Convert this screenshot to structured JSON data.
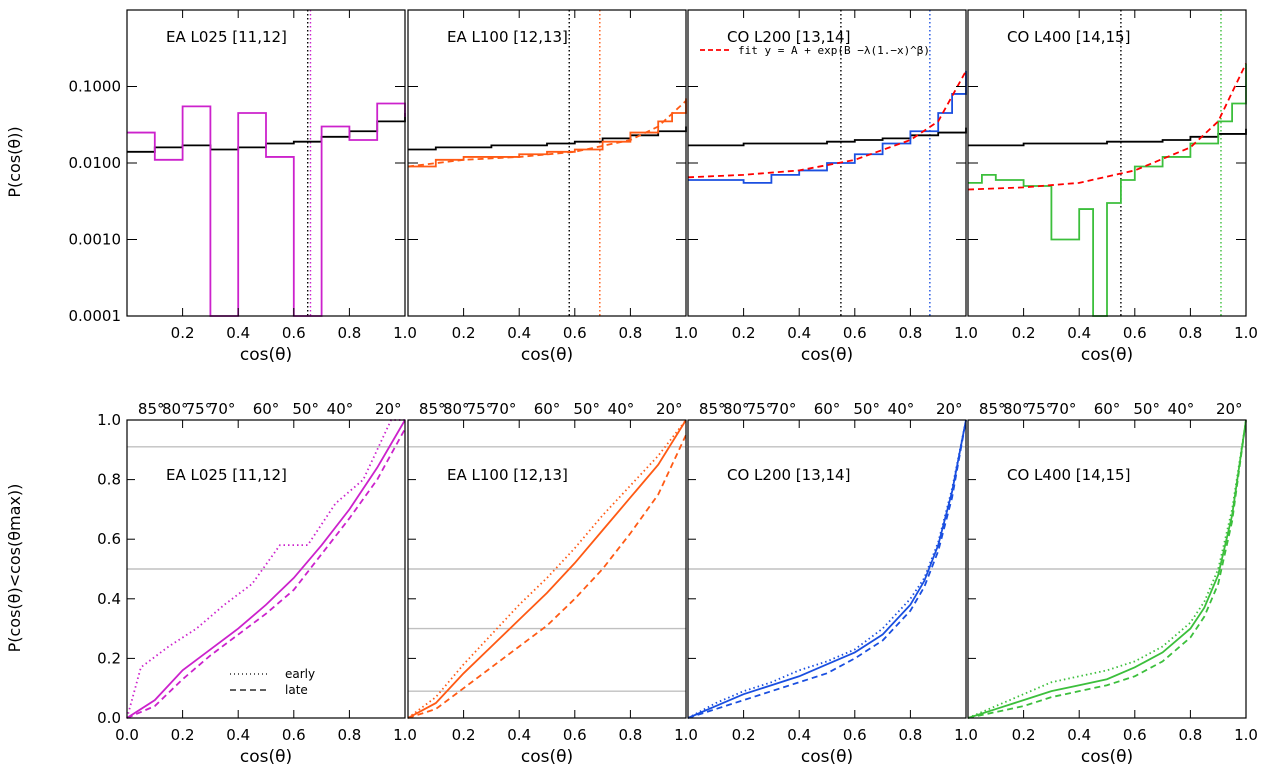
{
  "figure": {
    "top_ylabel": "P(cos(θ))",
    "bottom_ylabel": "P(cos(θ)<cos(θmax))",
    "xlabel": "cos(θ)",
    "fit_label": "fit y = A + exp(B −λ(1.−x)^β)",
    "legend_early": "early",
    "legend_late": "late"
  },
  "colors": {
    "EA L025": "#cc22cc",
    "EA L100": "#ff5a14",
    "CO L200": "#1a4fe0",
    "CO L400": "#3cbf3c",
    "reference": "#000000",
    "fit": "#ff0000",
    "gridline": "#c0c0c0"
  },
  "chart_data": [
    {
      "type": "line",
      "panel": "top-1",
      "drawstyle": "steps",
      "title": "EA L025 [11,12]",
      "xlabel": "cos(θ)",
      "ylabel": "P(cos(θ))",
      "yscale": "log",
      "xlim": [
        0,
        1
      ],
      "ylim": [
        0.0001,
        1.0
      ],
      "xticks": [
        "0.2",
        "0.4",
        "0.6",
        "0.8",
        "1.0"
      ],
      "yticks": [
        "0.0001",
        "0.0010",
        "0.0100",
        "0.1000"
      ],
      "vlines": [
        {
          "x": 0.65,
          "color": "#000000"
        },
        {
          "x": 0.66,
          "color": "#cc22cc"
        }
      ],
      "series": [
        {
          "color": "#000000",
          "x": [
            0.0,
            0.1,
            0.2,
            0.3,
            0.4,
            0.5,
            0.6,
            0.7,
            0.8,
            0.9,
            1.0
          ],
          "y": [
            0.014,
            0.016,
            0.017,
            0.015,
            0.016,
            0.018,
            0.019,
            0.022,
            0.026,
            0.035,
            0.045
          ]
        },
        {
          "color": "#cc22cc",
          "x": [
            0.0,
            0.1,
            0.2,
            0.3,
            0.4,
            0.5,
            0.6,
            0.7,
            0.8,
            0.9,
            1.0
          ],
          "y": [
            0.025,
            0.011,
            0.055,
            0.0001,
            0.045,
            0.012,
            0.0001,
            0.03,
            0.02,
            0.06,
            0.04
          ]
        }
      ]
    },
    {
      "type": "line",
      "panel": "top-2",
      "drawstyle": "steps",
      "title": "EA L100 [12,13]",
      "xlabel": "cos(θ)",
      "yscale": "log",
      "xlim": [
        0,
        1
      ],
      "ylim": [
        0.0001,
        1.0
      ],
      "xticks": [
        "0.2",
        "0.4",
        "0.6",
        "0.8",
        "1.0"
      ],
      "vlines": [
        {
          "x": 0.58,
          "color": "#000000"
        },
        {
          "x": 0.69,
          "color": "#ff5a14"
        }
      ],
      "series": [
        {
          "color": "#000000",
          "x": [
            0.0,
            0.1,
            0.2,
            0.3,
            0.4,
            0.5,
            0.6,
            0.7,
            0.8,
            0.9,
            1.0
          ],
          "y": [
            0.015,
            0.016,
            0.016,
            0.017,
            0.017,
            0.018,
            0.019,
            0.021,
            0.023,
            0.026,
            0.03
          ]
        },
        {
          "color": "#ff5a14",
          "x": [
            0.0,
            0.1,
            0.2,
            0.3,
            0.4,
            0.5,
            0.6,
            0.7,
            0.8,
            0.9,
            0.95,
            1.0
          ],
          "y": [
            0.009,
            0.011,
            0.012,
            0.012,
            0.013,
            0.014,
            0.015,
            0.019,
            0.025,
            0.035,
            0.045,
            0.07
          ]
        },
        {
          "color": "#ff5a14",
          "dash": "dashed",
          "x": [
            0.0,
            0.2,
            0.4,
            0.6,
            0.8,
            0.9,
            1.0
          ],
          "y": [
            0.009,
            0.011,
            0.012,
            0.014,
            0.02,
            0.03,
            0.065
          ]
        }
      ]
    },
    {
      "type": "line",
      "panel": "top-3",
      "drawstyle": "steps",
      "title": "CO L200 [13,14]",
      "xlabel": "cos(θ)",
      "yscale": "log",
      "xlim": [
        0,
        1
      ],
      "ylim": [
        0.0001,
        1.0
      ],
      "xticks": [
        "0.2",
        "0.4",
        "0.6",
        "0.8",
        "1.0"
      ],
      "vlines": [
        {
          "x": 0.55,
          "color": "#000000"
        },
        {
          "x": 0.87,
          "color": "#1a4fe0"
        }
      ],
      "series": [
        {
          "color": "#000000",
          "x": [
            0.0,
            0.1,
            0.2,
            0.3,
            0.4,
            0.5,
            0.6,
            0.7,
            0.8,
            0.9,
            1.0
          ],
          "y": [
            0.017,
            0.017,
            0.018,
            0.018,
            0.018,
            0.019,
            0.02,
            0.021,
            0.023,
            0.025,
            0.029
          ]
        },
        {
          "color": "#1a4fe0",
          "x": [
            0.0,
            0.1,
            0.2,
            0.3,
            0.4,
            0.5,
            0.6,
            0.7,
            0.8,
            0.9,
            0.95,
            1.0
          ],
          "y": [
            0.006,
            0.006,
            0.0055,
            0.007,
            0.008,
            0.01,
            0.013,
            0.018,
            0.026,
            0.045,
            0.08,
            0.16
          ]
        },
        {
          "color": "#ff0000",
          "dash": "dashed",
          "x": [
            0.0,
            0.2,
            0.4,
            0.6,
            0.8,
            0.9,
            1.0
          ],
          "y": [
            0.0065,
            0.007,
            0.008,
            0.011,
            0.02,
            0.035,
            0.16
          ]
        }
      ]
    },
    {
      "type": "line",
      "panel": "top-4",
      "drawstyle": "steps",
      "title": "CO L400 [14,15]",
      "xlabel": "cos(θ)",
      "yscale": "log",
      "xlim": [
        0,
        1
      ],
      "ylim": [
        0.0001,
        1.0
      ],
      "xticks": [
        "0.2",
        "0.4",
        "0.6",
        "0.8",
        "1.0"
      ],
      "vlines": [
        {
          "x": 0.55,
          "color": "#000000"
        },
        {
          "x": 0.91,
          "color": "#3cbf3c"
        }
      ],
      "series": [
        {
          "color": "#000000",
          "x": [
            0.0,
            0.1,
            0.2,
            0.3,
            0.4,
            0.5,
            0.6,
            0.7,
            0.8,
            0.9,
            1.0
          ],
          "y": [
            0.017,
            0.017,
            0.018,
            0.018,
            0.018,
            0.019,
            0.019,
            0.02,
            0.022,
            0.024,
            0.028
          ]
        },
        {
          "color": "#3cbf3c",
          "x": [
            0.0,
            0.05,
            0.1,
            0.2,
            0.3,
            0.4,
            0.45,
            0.5,
            0.55,
            0.6,
            0.7,
            0.8,
            0.9,
            0.95,
            1.0
          ],
          "y": [
            0.0055,
            0.007,
            0.006,
            0.005,
            0.001,
            0.0025,
            0.0001,
            0.003,
            0.006,
            0.009,
            0.012,
            0.018,
            0.035,
            0.06,
            0.2
          ]
        },
        {
          "color": "#ff0000",
          "dash": "dashed",
          "x": [
            0.0,
            0.2,
            0.4,
            0.6,
            0.8,
            0.9,
            1.0
          ],
          "y": [
            0.0045,
            0.0048,
            0.0055,
            0.008,
            0.016,
            0.035,
            0.2
          ]
        }
      ]
    },
    {
      "type": "line",
      "panel": "bottom-1",
      "title": "EA L025 [11,12]",
      "xlabel": "cos(θ)",
      "ylabel": "P(cos(θ)<cos(θmax))",
      "xlim": [
        0,
        1
      ],
      "ylim": [
        0,
        1.0
      ],
      "xticks": [
        "0.0",
        "0.2",
        "0.4",
        "0.6",
        "0.8",
        "1.0"
      ],
      "yticks": [
        "0.0",
        "0.2",
        "0.4",
        "0.6",
        "0.8",
        "1.0"
      ],
      "top_ticks": [
        "85°",
        "80°",
        "75°",
        "70°",
        "60°",
        "50°",
        "40°",
        "20°"
      ],
      "hlines": [
        0.5,
        0.91
      ],
      "series": [
        {
          "color": "#cc22cc",
          "dash": "solid",
          "x": [
            0.0,
            0.1,
            0.2,
            0.3,
            0.4,
            0.5,
            0.6,
            0.7,
            0.8,
            0.9,
            1.0
          ],
          "y": [
            0.0,
            0.06,
            0.16,
            0.23,
            0.3,
            0.38,
            0.47,
            0.58,
            0.7,
            0.84,
            1.0
          ]
        },
        {
          "color": "#cc22cc",
          "dash": "dashed",
          "name": "late",
          "x": [
            0.0,
            0.1,
            0.2,
            0.3,
            0.4,
            0.5,
            0.6,
            0.7,
            0.8,
            0.9,
            1.0
          ],
          "y": [
            0.0,
            0.04,
            0.13,
            0.21,
            0.28,
            0.35,
            0.43,
            0.55,
            0.67,
            0.8,
            0.97
          ]
        },
        {
          "color": "#cc22cc",
          "dash": "dotted",
          "name": "early",
          "x": [
            0.0,
            0.05,
            0.15,
            0.25,
            0.35,
            0.45,
            0.55,
            0.65,
            0.75,
            0.85,
            0.95,
            1.0
          ],
          "y": [
            0.0,
            0.17,
            0.24,
            0.3,
            0.38,
            0.45,
            0.58,
            0.58,
            0.72,
            0.8,
            1.0,
            1.0
          ]
        }
      ]
    },
    {
      "type": "line",
      "panel": "bottom-2",
      "title": "EA L100 [12,13]",
      "xlabel": "cos(θ)",
      "xlim": [
        0,
        1
      ],
      "ylim": [
        0,
        1.0
      ],
      "xticks": [
        "0.2",
        "0.4",
        "0.6",
        "0.8",
        "1.0"
      ],
      "top_ticks": [
        "85°",
        "80°",
        "75°",
        "70°",
        "60°",
        "50°",
        "40°",
        "20°"
      ],
      "hlines": [
        0.09,
        0.3,
        0.5,
        0.91
      ],
      "series": [
        {
          "color": "#ff5a14",
          "dash": "solid",
          "x": [
            0.0,
            0.1,
            0.2,
            0.3,
            0.4,
            0.5,
            0.6,
            0.7,
            0.8,
            0.9,
            1.0
          ],
          "y": [
            0.0,
            0.05,
            0.15,
            0.24,
            0.33,
            0.42,
            0.52,
            0.63,
            0.74,
            0.85,
            1.0
          ]
        },
        {
          "color": "#ff5a14",
          "dash": "dotted",
          "x": [
            0.0,
            0.1,
            0.2,
            0.3,
            0.4,
            0.5,
            0.6,
            0.7,
            0.8,
            0.9,
            1.0
          ],
          "y": [
            0.0,
            0.07,
            0.18,
            0.28,
            0.38,
            0.47,
            0.57,
            0.68,
            0.78,
            0.88,
            1.0
          ]
        },
        {
          "color": "#ff5a14",
          "dash": "dashed",
          "x": [
            0.0,
            0.1,
            0.2,
            0.3,
            0.4,
            0.5,
            0.6,
            0.7,
            0.8,
            0.9,
            1.0
          ],
          "y": [
            0.0,
            0.03,
            0.1,
            0.17,
            0.24,
            0.31,
            0.4,
            0.5,
            0.62,
            0.75,
            0.95
          ]
        }
      ]
    },
    {
      "type": "line",
      "panel": "bottom-3",
      "title": "CO L200 [13,14]",
      "xlabel": "cos(θ)",
      "xlim": [
        0,
        1
      ],
      "ylim": [
        0,
        1.0
      ],
      "xticks": [
        "0.2",
        "0.4",
        "0.6",
        "0.8",
        "1.0"
      ],
      "top_ticks": [
        "85°",
        "80°",
        "75°",
        "70°",
        "60°",
        "50°",
        "40°",
        "20°"
      ],
      "hlines": [
        0.5,
        0.91
      ],
      "series": [
        {
          "color": "#1a4fe0",
          "dash": "solid",
          "x": [
            0.0,
            0.1,
            0.2,
            0.3,
            0.4,
            0.5,
            0.6,
            0.7,
            0.8,
            0.85,
            0.9,
            0.95,
            1.0
          ],
          "y": [
            0.0,
            0.04,
            0.08,
            0.11,
            0.14,
            0.18,
            0.22,
            0.28,
            0.38,
            0.46,
            0.58,
            0.76,
            1.0
          ]
        },
        {
          "color": "#1a4fe0",
          "dash": "dotted",
          "x": [
            0.0,
            0.1,
            0.2,
            0.3,
            0.4,
            0.5,
            0.6,
            0.7,
            0.8,
            0.85,
            0.9,
            0.95,
            1.0
          ],
          "y": [
            0.0,
            0.05,
            0.09,
            0.12,
            0.16,
            0.19,
            0.23,
            0.3,
            0.4,
            0.47,
            0.59,
            0.77,
            1.0
          ]
        },
        {
          "color": "#1a4fe0",
          "dash": "dashed",
          "x": [
            0.0,
            0.1,
            0.2,
            0.3,
            0.4,
            0.5,
            0.6,
            0.7,
            0.8,
            0.85,
            0.9,
            0.95,
            1.0
          ],
          "y": [
            0.0,
            0.03,
            0.06,
            0.09,
            0.12,
            0.15,
            0.2,
            0.26,
            0.36,
            0.44,
            0.56,
            0.74,
            1.0
          ]
        }
      ]
    },
    {
      "type": "line",
      "panel": "bottom-4",
      "title": "CO L400 [14,15]",
      "xlabel": "cos(θ)",
      "xlim": [
        0,
        1
      ],
      "ylim": [
        0,
        1.0
      ],
      "xticks": [
        "0.2",
        "0.4",
        "0.6",
        "0.8",
        "1.0"
      ],
      "top_ticks": [
        "85°",
        "80°",
        "75°",
        "70°",
        "60°",
        "50°",
        "40°",
        "20°"
      ],
      "hlines": [
        0.5,
        0.91
      ],
      "series": [
        {
          "color": "#3cbf3c",
          "dash": "solid",
          "x": [
            0.0,
            0.1,
            0.2,
            0.3,
            0.4,
            0.5,
            0.6,
            0.7,
            0.8,
            0.85,
            0.9,
            0.95,
            1.0
          ],
          "y": [
            0.0,
            0.03,
            0.06,
            0.09,
            0.11,
            0.13,
            0.17,
            0.22,
            0.3,
            0.37,
            0.48,
            0.68,
            1.0
          ]
        },
        {
          "color": "#3cbf3c",
          "dash": "dotted",
          "x": [
            0.0,
            0.1,
            0.2,
            0.3,
            0.4,
            0.5,
            0.6,
            0.7,
            0.8,
            0.85,
            0.9,
            0.95,
            1.0
          ],
          "y": [
            0.0,
            0.04,
            0.08,
            0.12,
            0.14,
            0.16,
            0.19,
            0.24,
            0.32,
            0.39,
            0.5,
            0.7,
            1.0
          ]
        },
        {
          "color": "#3cbf3c",
          "dash": "dashed",
          "x": [
            0.0,
            0.1,
            0.2,
            0.3,
            0.4,
            0.5,
            0.6,
            0.7,
            0.8,
            0.85,
            0.9,
            0.95,
            1.0
          ],
          "y": [
            0.0,
            0.02,
            0.04,
            0.07,
            0.09,
            0.11,
            0.14,
            0.19,
            0.27,
            0.34,
            0.45,
            0.66,
            1.0
          ]
        }
      ]
    }
  ]
}
